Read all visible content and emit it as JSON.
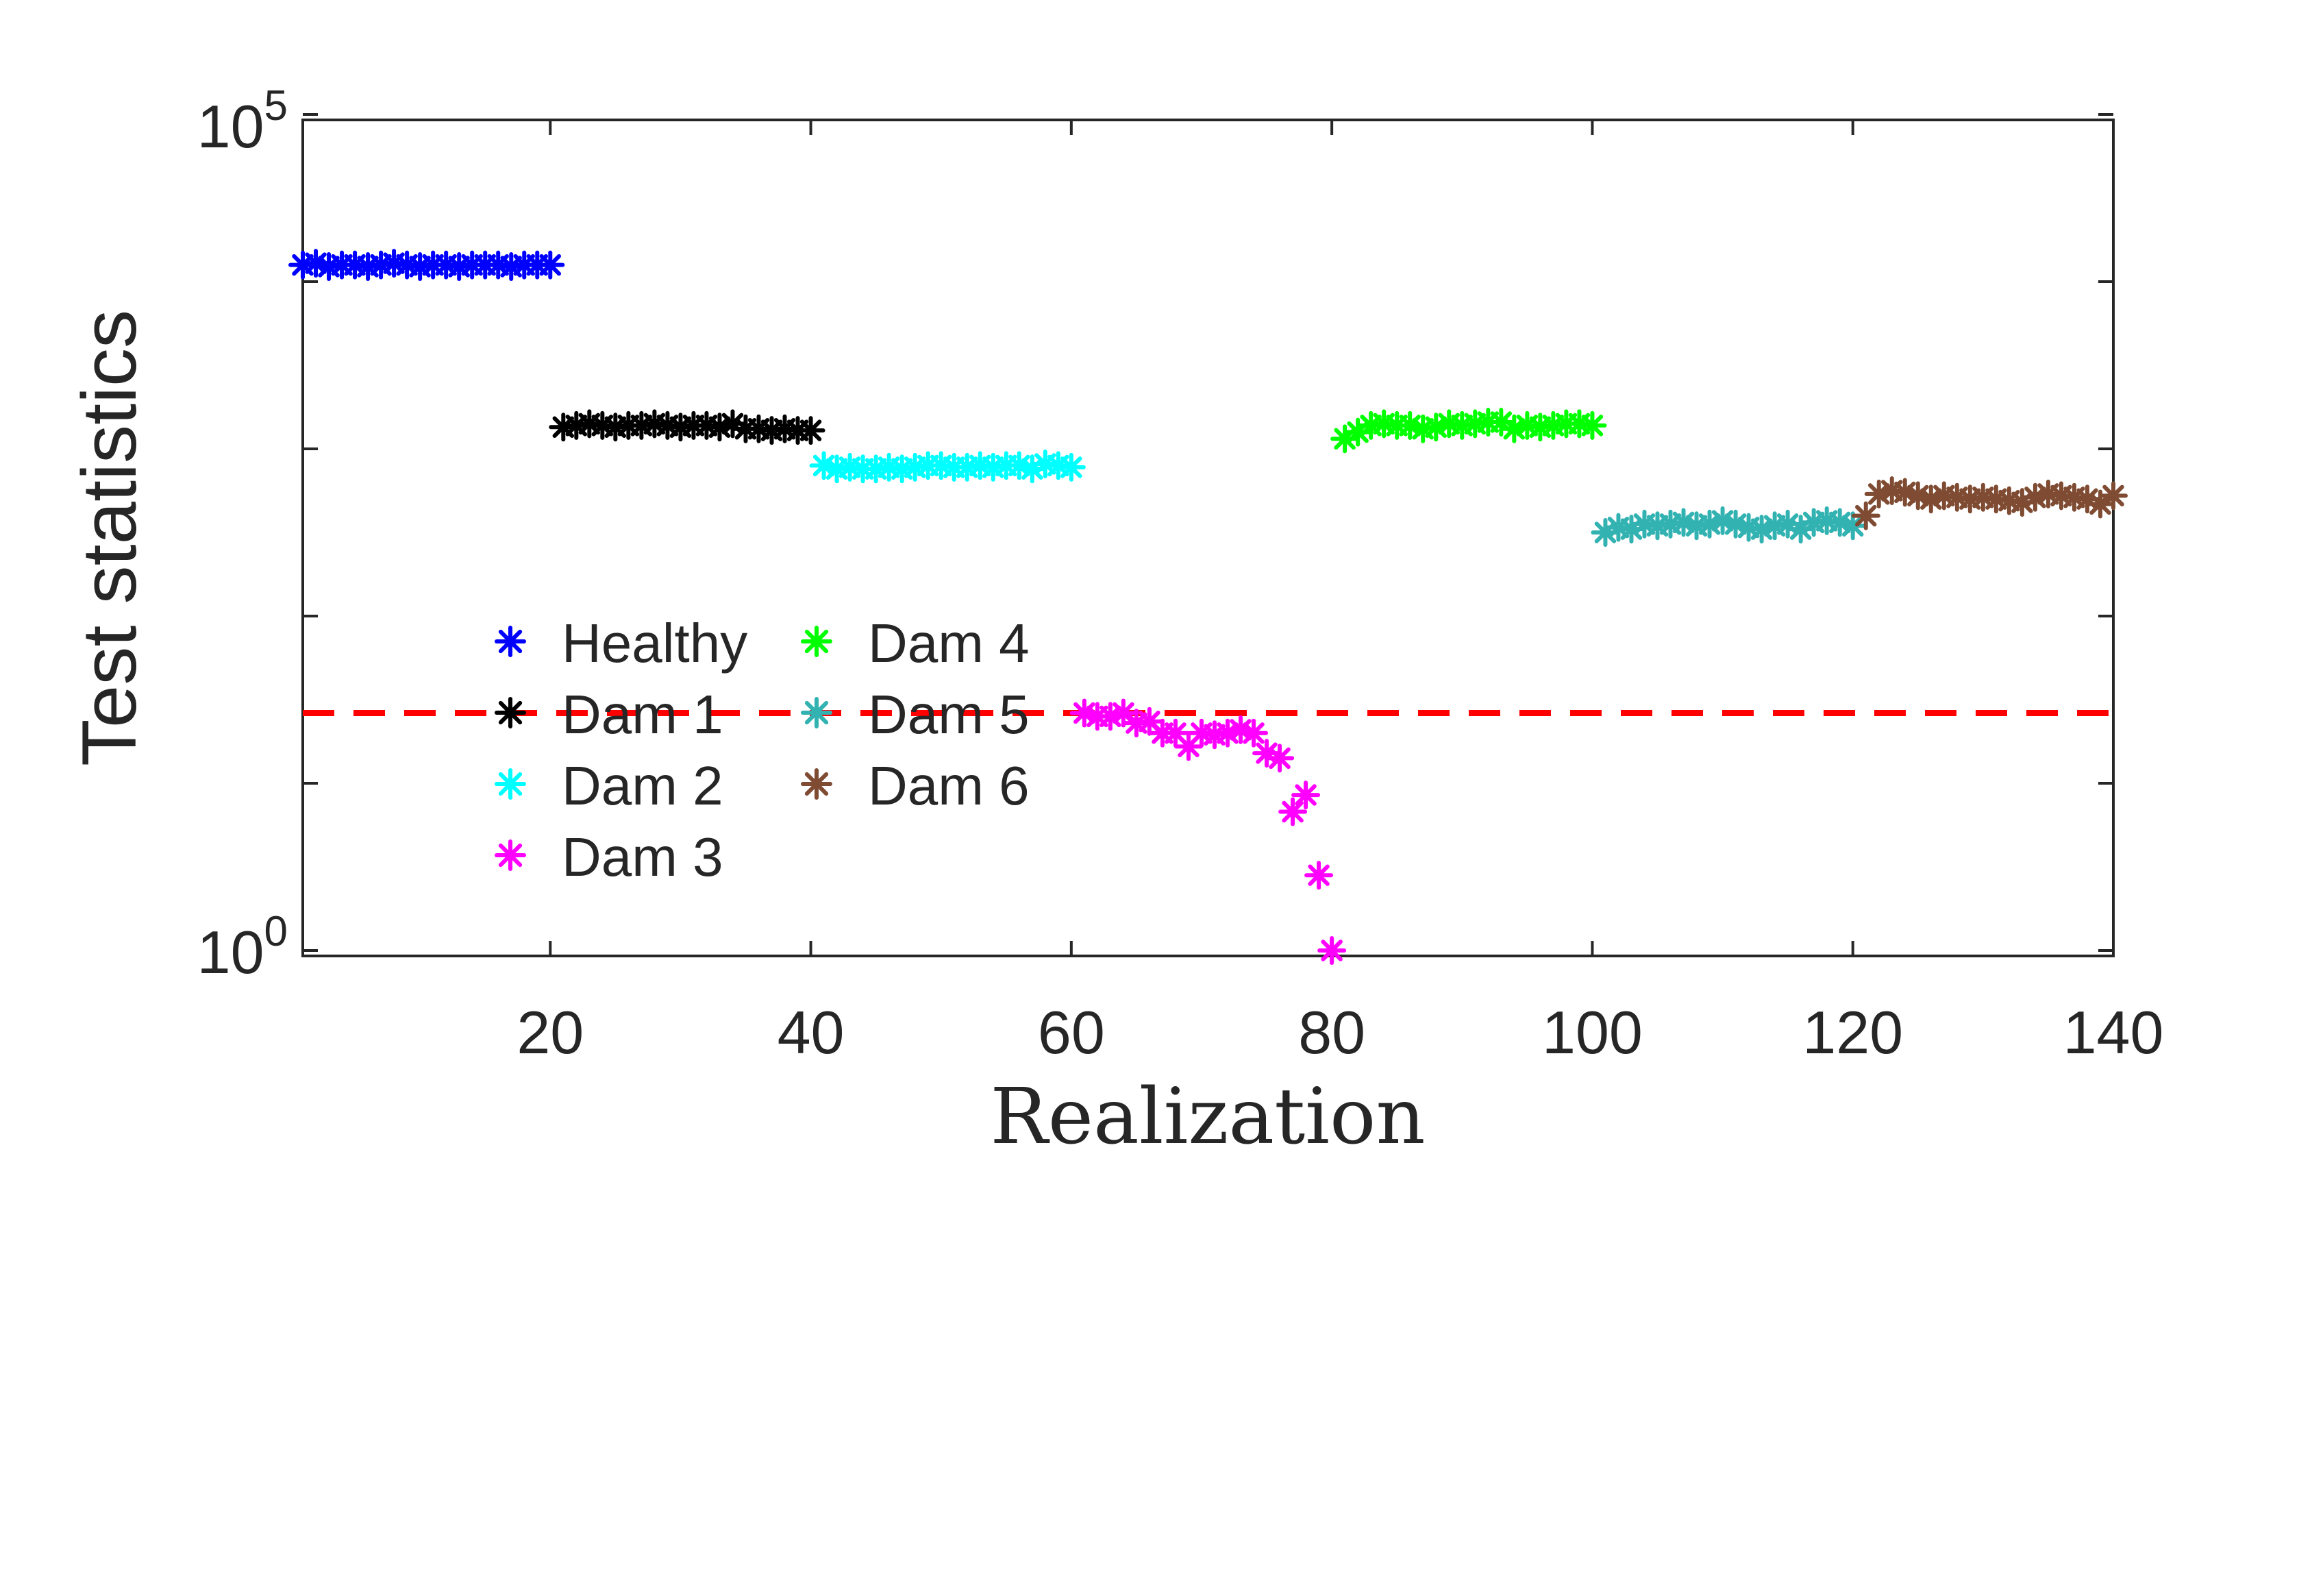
{
  "chart_data": {
    "type": "scatter",
    "title": "",
    "xlabel": "Realization",
    "ylabel": "Test statistics",
    "xlim": [
      1,
      140
    ],
    "ylim_log10": [
      0,
      5
    ],
    "yscale": "log",
    "x_ticks": [
      "20",
      "40",
      "60",
      "80",
      "100",
      "120",
      "140"
    ],
    "x_tick_values": [
      20,
      40,
      60,
      80,
      100,
      120,
      140
    ],
    "y_ticks": [
      {
        "base": "10",
        "exp": "0",
        "log10": 0
      },
      {
        "base": "10",
        "exp": "5",
        "log10": 5
      }
    ],
    "y_minor_ticks_log10": [
      1,
      2,
      3,
      4
    ],
    "threshold": {
      "log10": 1.42,
      "color": "#ff0000",
      "style": "dashed"
    },
    "legend_position": "lower-left",
    "marker": "asterisk",
    "series": [
      {
        "name": "Healthy",
        "color": "#0000ff",
        "x_range": [
          1,
          20
        ],
        "log10_values": [
          4.1,
          4.11,
          4.09,
          4.1,
          4.1,
          4.09,
          4.1,
          4.11,
          4.1,
          4.09,
          4.1,
          4.1,
          4.09,
          4.1,
          4.1,
          4.1,
          4.09,
          4.1,
          4.1,
          4.1
        ]
      },
      {
        "name": "Dam 1",
        "color": "#000000",
        "x_range": [
          21,
          40
        ],
        "log10_values": [
          3.13,
          3.14,
          3.15,
          3.14,
          3.13,
          3.14,
          3.14,
          3.15,
          3.14,
          3.13,
          3.14,
          3.14,
          3.13,
          3.15,
          3.12,
          3.12,
          3.11,
          3.12,
          3.11,
          3.11
        ]
      },
      {
        "name": "Dam 2",
        "color": "#00ffff",
        "x_range": [
          41,
          60
        ],
        "log10_values": [
          2.9,
          2.88,
          2.89,
          2.88,
          2.88,
          2.89,
          2.88,
          2.89,
          2.9,
          2.9,
          2.89,
          2.89,
          2.9,
          2.89,
          2.9,
          2.9,
          2.88,
          2.91,
          2.9,
          2.89
        ]
      },
      {
        "name": "Dam 3",
        "color": "#ff00ff",
        "x_range": [
          61,
          80
        ],
        "log10_values": [
          1.42,
          1.4,
          1.4,
          1.42,
          1.36,
          1.37,
          1.3,
          1.3,
          1.22,
          1.3,
          1.29,
          1.3,
          1.32,
          1.3,
          1.18,
          1.15,
          0.83,
          0.93,
          0.45,
          0.0
        ]
      },
      {
        "name": "Dam 4",
        "color": "#00ff00",
        "x_range": [
          81,
          100
        ],
        "log10_values": [
          3.06,
          3.1,
          3.14,
          3.15,
          3.14,
          3.14,
          3.12,
          3.13,
          3.15,
          3.14,
          3.15,
          3.16,
          3.16,
          3.12,
          3.14,
          3.13,
          3.14,
          3.15,
          3.15,
          3.14
        ]
      },
      {
        "name": "Dam 5",
        "color": "#33b2b2",
        "x_range": [
          101,
          120
        ],
        "log10_values": [
          2.5,
          2.53,
          2.52,
          2.55,
          2.54,
          2.55,
          2.56,
          2.54,
          2.55,
          2.57,
          2.55,
          2.53,
          2.52,
          2.54,
          2.55,
          2.52,
          2.56,
          2.57,
          2.56,
          2.54
        ]
      },
      {
        "name": "Dam 6",
        "color": "#7f4c33",
        "x_range": [
          121,
          140
        ],
        "log10_values": [
          2.6,
          2.73,
          2.75,
          2.74,
          2.72,
          2.7,
          2.72,
          2.71,
          2.7,
          2.71,
          2.7,
          2.69,
          2.68,
          2.71,
          2.73,
          2.72,
          2.71,
          2.7,
          2.67,
          2.72
        ]
      }
    ]
  }
}
